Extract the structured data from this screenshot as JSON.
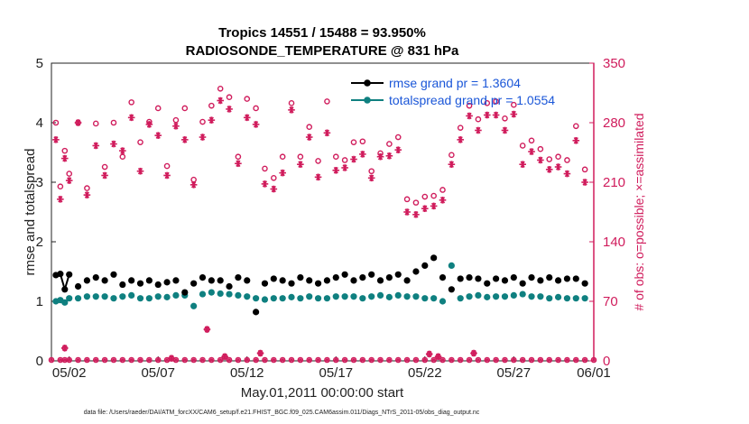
{
  "chart_data": {
    "type": "line",
    "title": "Tropics 14551 / 15488 = 93.950%",
    "subtitle": "RADIOSONDE_TEMPERATURE @ 831 hPa",
    "xlabel": "May.01,2011 00:00:00 start",
    "ylabel": "rmse and totalspread",
    "y2label": "# of obs: o=possible; ×=assimilated",
    "xlim": [
      0.5,
      31.0
    ],
    "ylim": [
      0,
      5
    ],
    "y2lim": [
      0,
      350
    ],
    "x_ticks": [
      1.5,
      6.5,
      11.5,
      16.5,
      21.5,
      26.5,
      31.5
    ],
    "x_tick_labels": [
      "05/02",
      "05/07",
      "05/12",
      "05/17",
      "05/22",
      "05/27",
      "06/01"
    ],
    "y_ticks": [
      "0",
      "1",
      "2",
      "3",
      "4",
      "5"
    ],
    "y2_ticks": [
      "0",
      "70",
      "140",
      "210",
      "280",
      "350"
    ],
    "legend": [
      "rmse grand pr = 1.3604",
      "totalspread grand pr = 1.0554"
    ],
    "colors": {
      "rmse": "#000000",
      "spread": "#0f8080",
      "obs": "#d01c5c",
      "legend_text": "#1a56d8"
    },
    "x": [
      0.75,
      1.0,
      1.25,
      1.5,
      2.0,
      2.5,
      3.0,
      3.5,
      4.0,
      4.5,
      5.0,
      5.5,
      6.0,
      6.5,
      7.0,
      7.5,
      8.0,
      8.5,
      9.0,
      9.5,
      10.0,
      10.5,
      11.0,
      11.5,
      12.0,
      12.5,
      13.0,
      13.5,
      14.0,
      14.5,
      15.0,
      15.5,
      16.0,
      16.5,
      17.0,
      17.5,
      18.0,
      18.5,
      19.0,
      19.5,
      20.0,
      20.5,
      21.0,
      21.5,
      22.0,
      22.5,
      23.0,
      23.5,
      24.0,
      24.5,
      25.0,
      25.5,
      26.0,
      26.5,
      27.0,
      27.5,
      28.0,
      28.5,
      29.0,
      29.5,
      30.0,
      30.5
    ],
    "series": [
      {
        "name": "rmse",
        "values": [
          1.44,
          1.46,
          1.2,
          1.45,
          1.25,
          1.35,
          1.4,
          1.35,
          1.45,
          1.28,
          1.35,
          1.3,
          1.35,
          1.28,
          1.32,
          1.35,
          1.15,
          1.3,
          1.4,
          1.35,
          1.35,
          1.25,
          1.4,
          1.35,
          0.82,
          1.3,
          1.38,
          1.35,
          1.3,
          1.4,
          1.35,
          1.3,
          1.35,
          1.4,
          1.45,
          1.35,
          1.4,
          1.45,
          1.35,
          1.4,
          1.45,
          1.35,
          1.5,
          1.6,
          1.73,
          1.4,
          1.2,
          1.38,
          1.4,
          1.38,
          1.3,
          1.38,
          1.35,
          1.4,
          1.3,
          1.4,
          1.35,
          1.4,
          1.35,
          1.38,
          1.38,
          1.3
        ]
      },
      {
        "name": "totalspread",
        "values": [
          1.0,
          1.02,
          0.98,
          1.05,
          1.05,
          1.08,
          1.08,
          1.08,
          1.05,
          1.08,
          1.1,
          1.05,
          1.05,
          1.08,
          1.07,
          1.1,
          1.1,
          0.92,
          1.12,
          1.15,
          1.13,
          1.12,
          1.1,
          1.08,
          1.05,
          1.03,
          1.05,
          1.05,
          1.07,
          1.05,
          1.08,
          1.05,
          1.05,
          1.08,
          1.08,
          1.08,
          1.05,
          1.08,
          1.1,
          1.07,
          1.1,
          1.08,
          1.08,
          1.05,
          1.05,
          1.0,
          1.6,
          1.05,
          1.08,
          1.1,
          1.07,
          1.08,
          1.08,
          1.1,
          1.12,
          1.08,
          1.08,
          1.05,
          1.07,
          1.05,
          1.05,
          1.05
        ]
      },
      {
        "name": "obs possible",
        "values": [
          280,
          205,
          247,
          220,
          280,
          203,
          279,
          228,
          280,
          240,
          304,
          257,
          281,
          297,
          229,
          283,
          297,
          213,
          281,
          300,
          320,
          310,
          240,
          308,
          297,
          226,
          215,
          240,
          303,
          240,
          275,
          235,
          305,
          240,
          236,
          257,
          258,
          223,
          244,
          255,
          263,
          190,
          186,
          193,
          194,
          201,
          242,
          274,
          300,
          284,
          303,
          305,
          285,
          301,
          253,
          259,
          249,
          237,
          240,
          236,
          276,
          225
        ]
      },
      {
        "name": "obs assimilated",
        "values": [
          260,
          190,
          238,
          212,
          280,
          195,
          253,
          218,
          255,
          247,
          286,
          223,
          278,
          265,
          218,
          276,
          260,
          207,
          263,
          283,
          306,
          296,
          232,
          286,
          278,
          208,
          202,
          221,
          295,
          231,
          263,
          216,
          268,
          224,
          227,
          237,
          243,
          215,
          240,
          241,
          248,
          175,
          172,
          179,
          182,
          189,
          231,
          260,
          288,
          271,
          289,
          289,
          271,
          290,
          231,
          246,
          236,
          225,
          228,
          220,
          259,
          210
        ]
      }
    ],
    "rejected_obs": {
      "x": [
        0.5,
        1.0,
        1.25,
        1.5,
        2.0,
        2.5,
        3.0,
        3.5,
        4.0,
        4.5,
        5.0,
        5.5,
        6.0,
        6.5,
        7.0,
        7.5,
        8.0,
        8.5,
        9.0,
        9.5,
        10.0,
        10.5,
        11.0,
        11.5,
        12.0,
        12.5,
        13.0,
        13.5,
        14.0,
        14.5,
        15.0,
        15.5,
        16.0,
        16.5,
        17.0,
        17.5,
        18.0,
        18.5,
        19.0,
        19.5,
        20.0,
        20.5,
        21.0,
        21.5,
        22.0,
        22.5,
        23.0,
        23.5,
        24.0,
        24.5,
        25.0,
        25.5,
        26.0,
        26.5,
        27.0,
        27.5,
        28.0,
        28.5,
        29.0,
        29.5,
        30.0,
        30.5,
        31.0
      ],
      "values": [
        0,
        0,
        0,
        0,
        0,
        0,
        0,
        0,
        0,
        0,
        0,
        0,
        0,
        0,
        0,
        0,
        0,
        0,
        0,
        0,
        0,
        0,
        0,
        0,
        0,
        0,
        0,
        0,
        0,
        0,
        0,
        0,
        0,
        0,
        0,
        0,
        0,
        0,
        0,
        0,
        0,
        0,
        0,
        0,
        0,
        0,
        0,
        0,
        0,
        0,
        0,
        0,
        0,
        0,
        0,
        0,
        0,
        0,
        0,
        0,
        0,
        0,
        0
      ],
      "special": [
        {
          "x": 1.25,
          "value": 15
        },
        {
          "x": 7.25,
          "value": 3
        },
        {
          "x": 9.25,
          "value": 37
        },
        {
          "x": 10.25,
          "value": 5
        },
        {
          "x": 12.25,
          "value": 9
        },
        {
          "x": 21.75,
          "value": 8
        },
        {
          "x": 22.25,
          "value": 5
        },
        {
          "x": 24.25,
          "value": 9
        }
      ]
    }
  },
  "footer": {
    "data_file": "data file: /Users/raeder/DAI/ATM_forcXX/CAM6_setup/f.e21.FHIST_BGC.f09_025.CAM6assim.011/Diags_NTrS_2011-05/obs_diag_output.nc"
  }
}
